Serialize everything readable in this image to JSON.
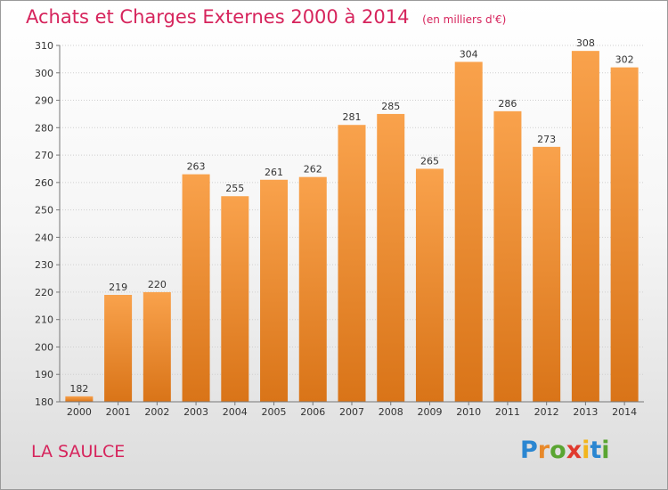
{
  "header": {
    "title": "Achats et Charges Externes 2000 à 2014",
    "unit": "(en milliers d'€)"
  },
  "footer": {
    "commune": "LA SAULCE",
    "logo": "Proxiti"
  },
  "colors": {
    "title": "#d6245c",
    "bar_light": "#f9a24c",
    "bar_dark": "#d97418",
    "grid": "#cfcfcf"
  },
  "chart_data": {
    "type": "bar",
    "title": "Achats et Charges Externes 2000 à 2014",
    "subtitle": "(en milliers d'€)",
    "xlabel": "",
    "ylabel": "",
    "categories": [
      "2000",
      "2001",
      "2002",
      "2003",
      "2004",
      "2005",
      "2006",
      "2007",
      "2008",
      "2009",
      "2010",
      "2011",
      "2012",
      "2013",
      "2014"
    ],
    "values": [
      182,
      219,
      220,
      263,
      255,
      261,
      262,
      281,
      285,
      265,
      304,
      286,
      273,
      308,
      302
    ],
    "ylim": [
      180,
      310
    ],
    "yticks": [
      180,
      190,
      200,
      210,
      220,
      230,
      240,
      250,
      260,
      270,
      280,
      290,
      300,
      310
    ],
    "grid": true,
    "legend": "none"
  }
}
